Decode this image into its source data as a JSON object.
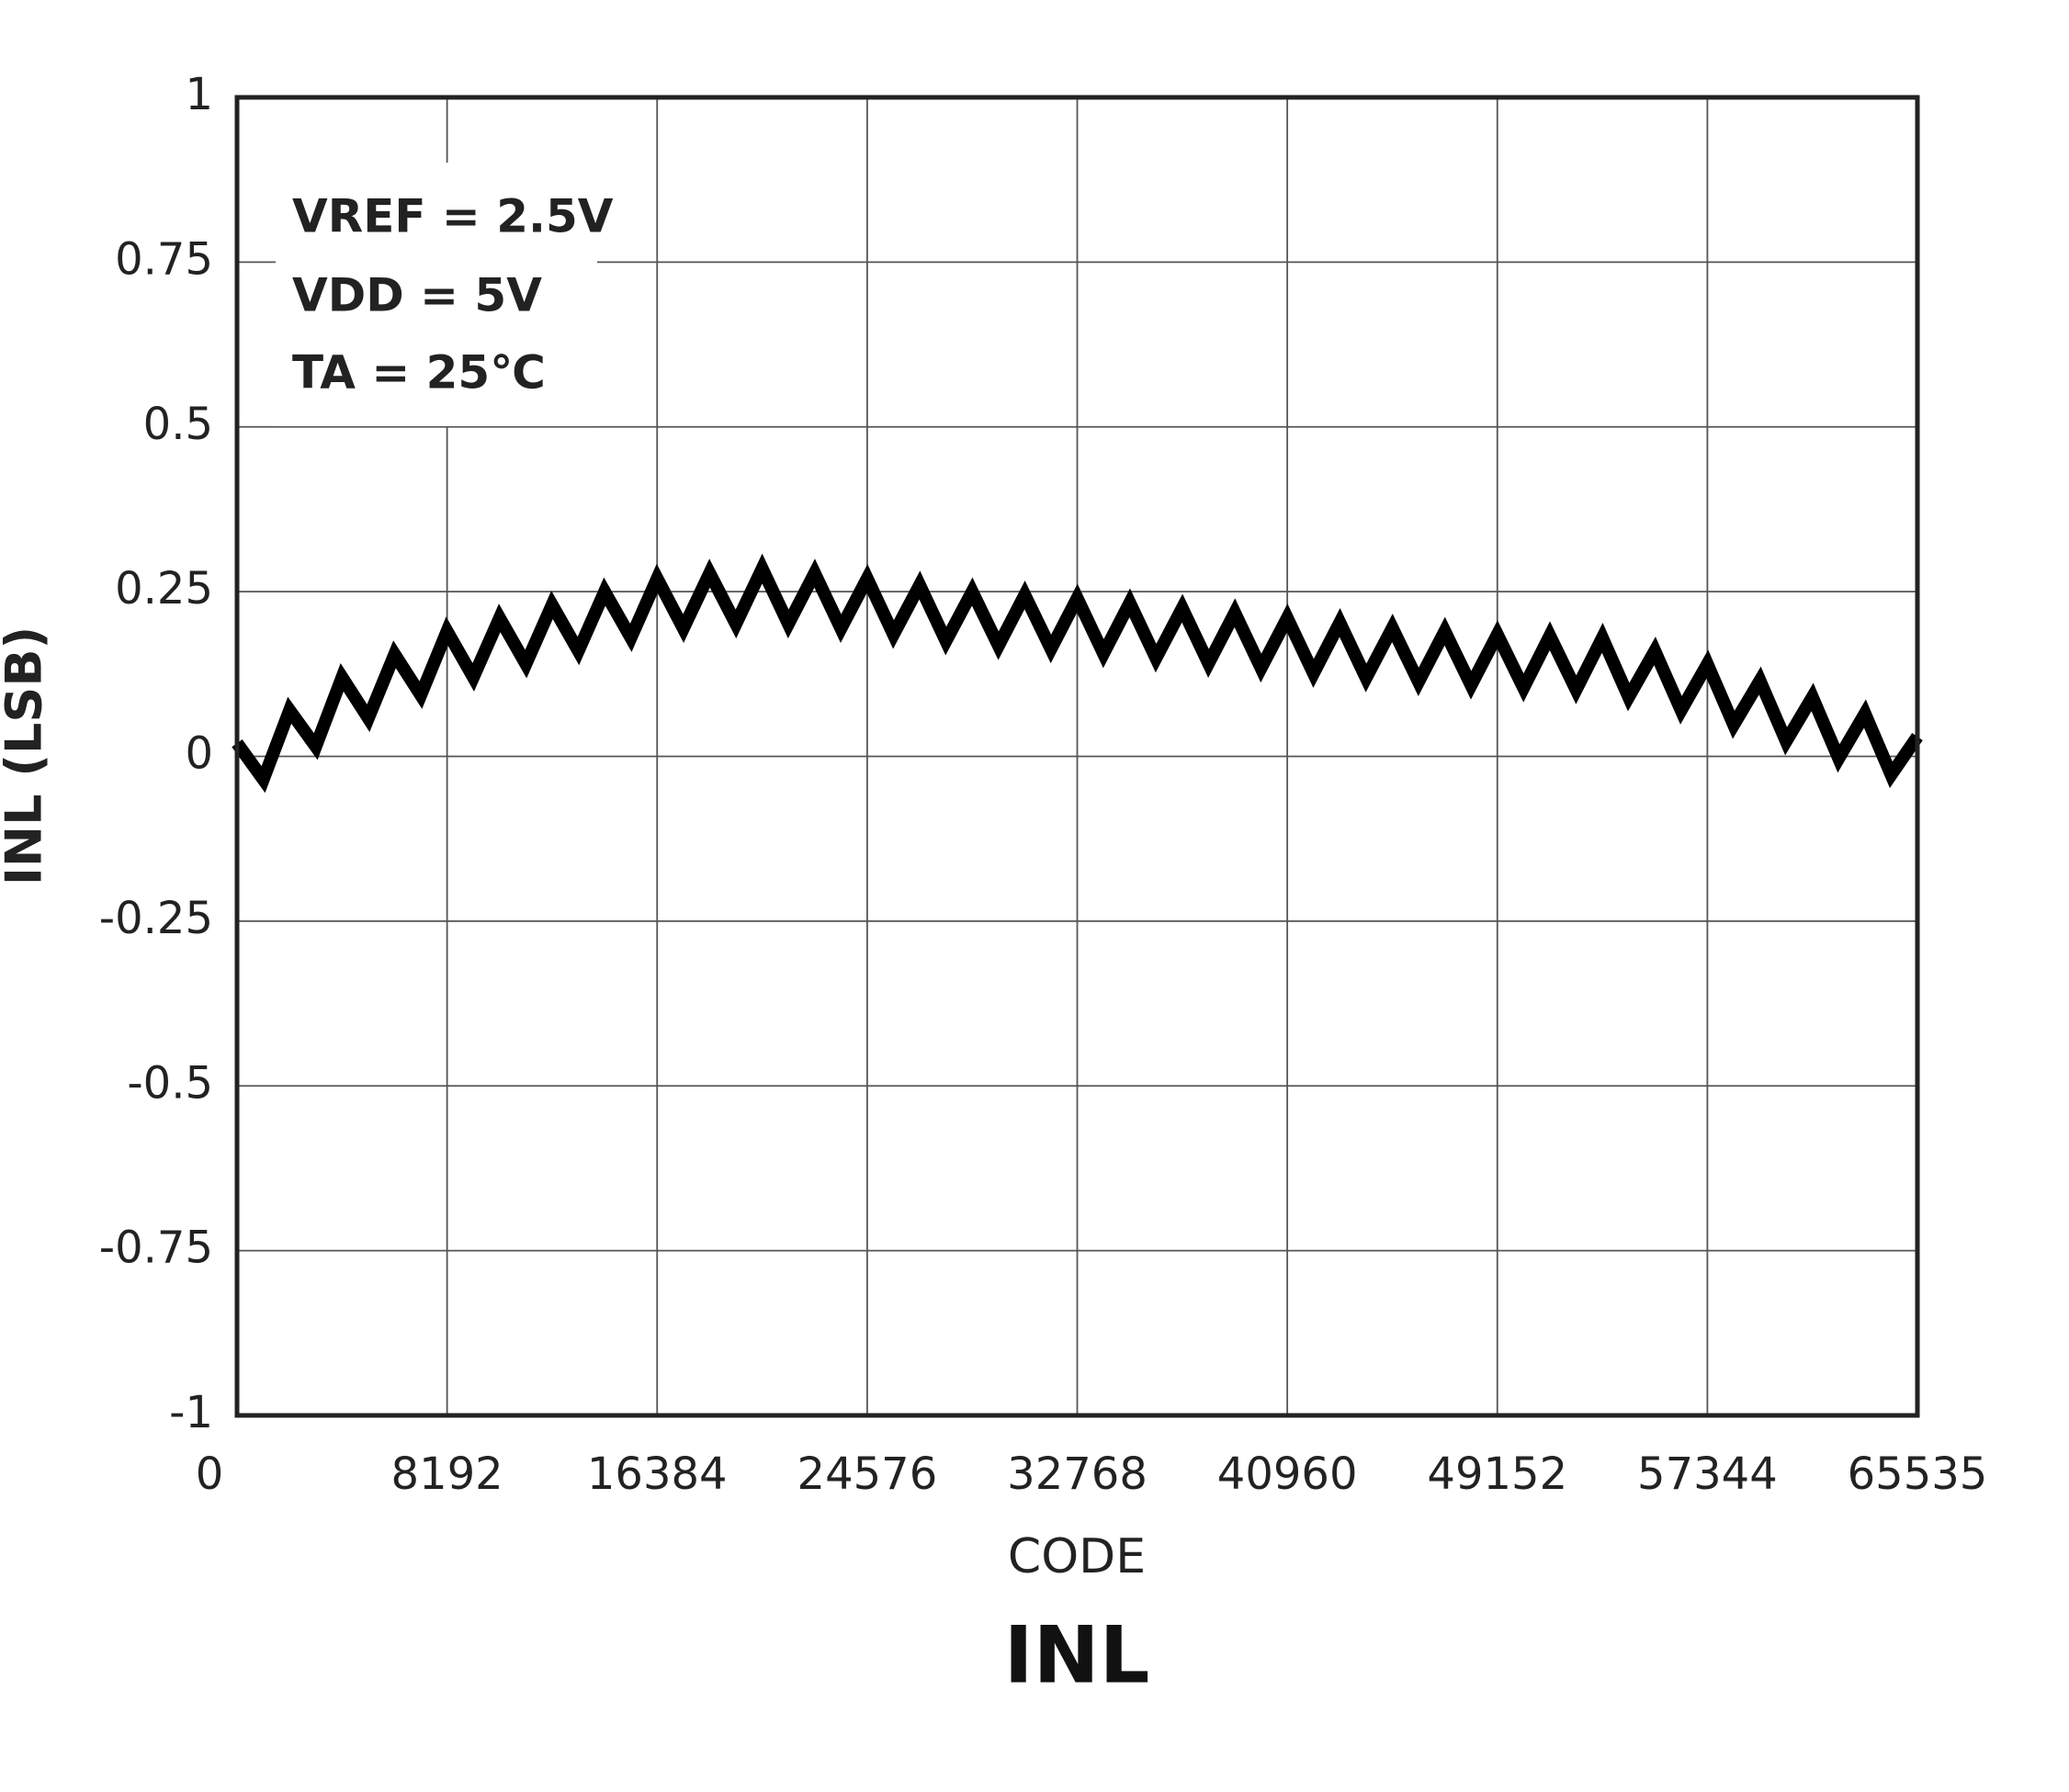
{
  "chart_data": {
    "type": "line",
    "title": "INL",
    "xlabel": "CODE",
    "ylabel": "INL (LSB)",
    "annotations": [
      "VREF = 2.5V",
      "VDD = 5V",
      "TA = 25℃"
    ],
    "x": [
      0,
      1024,
      2048,
      3072,
      4096,
      5120,
      6144,
      7168,
      8192,
      9216,
      10240,
      11264,
      12288,
      13312,
      14336,
      15360,
      16384,
      17408,
      18432,
      19456,
      20480,
      21504,
      22528,
      23552,
      24576,
      25600,
      26624,
      27648,
      28672,
      29696,
      30720,
      31744,
      32768,
      33792,
      34816,
      35840,
      36864,
      37888,
      38912,
      39936,
      40960,
      41984,
      43008,
      44032,
      45056,
      46080,
      47104,
      48128,
      49152,
      50176,
      51200,
      52224,
      53248,
      54272,
      55296,
      56320,
      57344,
      58368,
      59392,
      60416,
      61440,
      62464,
      63488,
      64512,
      65535
    ],
    "series": [
      {
        "name": "INL",
        "color": "#000000",
        "values": [
          0.02,
          -0.035,
          0.07,
          0.015,
          0.12,
          0.058,
          0.155,
          0.093,
          0.19,
          0.12,
          0.21,
          0.14,
          0.23,
          0.16,
          0.25,
          0.18,
          0.27,
          0.194,
          0.278,
          0.201,
          0.285,
          0.201,
          0.278,
          0.194,
          0.27,
          0.185,
          0.26,
          0.175,
          0.25,
          0.168,
          0.245,
          0.163,
          0.24,
          0.156,
          0.233,
          0.149,
          0.225,
          0.141,
          0.218,
          0.134,
          0.21,
          0.126,
          0.203,
          0.119,
          0.195,
          0.113,
          0.19,
          0.108,
          0.185,
          0.104,
          0.183,
          0.101,
          0.18,
          0.09,
          0.16,
          0.07,
          0.14,
          0.048,
          0.115,
          0.023,
          0.09,
          -0.003,
          0.065,
          -0.028,
          0.03
        ]
      }
    ],
    "xlim": [
      0,
      65535
    ],
    "xticks": [
      0,
      8192,
      16384,
      24576,
      32768,
      40960,
      49152,
      57344,
      65535
    ],
    "ylim": [
      -1,
      1
    ],
    "yticks": [
      -1,
      -0.75,
      -0.5,
      -0.25,
      0,
      0.25,
      0.5,
      0.75,
      1
    ],
    "grid": true
  }
}
